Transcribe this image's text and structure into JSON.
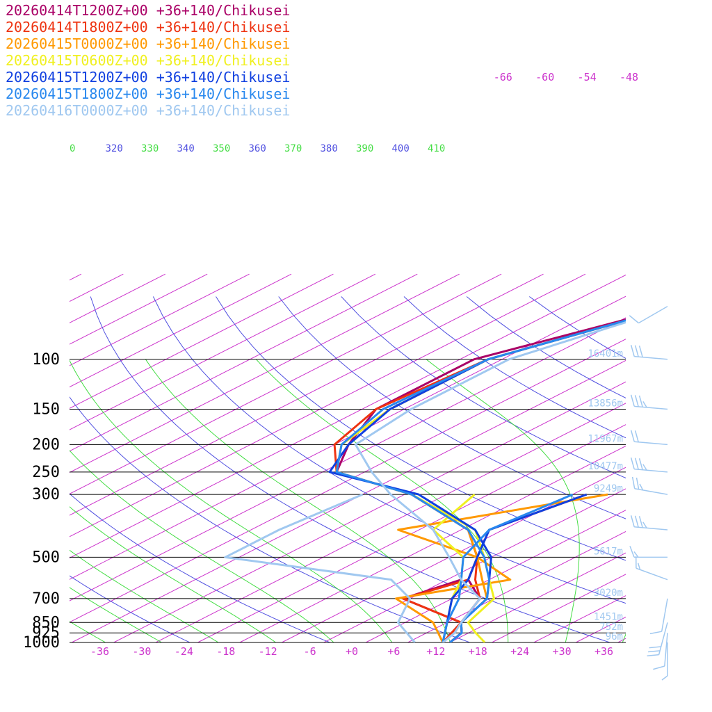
{
  "chart_data": {
    "type": "line",
    "title": "",
    "xlabel": "",
    "ylabel": "",
    "x_tick_labels": [
      "-36",
      "-30",
      "-24",
      "-18",
      "-12",
      "-6",
      "+0",
      "+6",
      "+12",
      "+18",
      "+24",
      "+30",
      "+36"
    ],
    "top_tick_labels": [
      "-66",
      "-60",
      "-54",
      "-48"
    ],
    "pressure_levels": [
      100,
      150,
      200,
      250,
      300,
      500,
      700,
      850,
      925,
      1000
    ],
    "pressure_labels": [
      "100",
      "150",
      "200",
      "250",
      "300",
      "500",
      "700",
      "850",
      "925",
      "1000"
    ],
    "theta_labels": [
      "0",
      "320",
      "330",
      "340",
      "350",
      "360",
      "370",
      "380",
      "390",
      "400",
      "410"
    ],
    "height_labels": [
      {
        "p": 100,
        "label": "16401m"
      },
      {
        "p": 150,
        "label": "13856m"
      },
      {
        "p": 200,
        "label": "11967m"
      },
      {
        "p": 250,
        "label": "10477m"
      },
      {
        "p": 300,
        "label": "9249m"
      },
      {
        "p": 500,
        "label": "5617m"
      },
      {
        "p": 700,
        "label": "3020m"
      },
      {
        "p": 850,
        "label": "1451m"
      },
      {
        "p": 925,
        "label": "752m"
      },
      {
        "p": 1000,
        "label": "96m"
      }
    ],
    "series": [
      {
        "name": "20260414T1200Z+00 +36+140/Chikusei",
        "color": "#aa0066",
        "temp": [
          [
            -48,
            65
          ],
          [
            -62,
            100
          ],
          [
            -62,
            150
          ],
          [
            -56,
            200
          ],
          [
            -50,
            250
          ],
          [
            -33,
            300
          ],
          [
            -15,
            400
          ],
          [
            -6,
            500
          ],
          [
            -1,
            600
          ],
          [
            6,
            700
          ],
          [
            10,
            850
          ],
          [
            13,
            925
          ],
          [
            14,
            1000
          ]
        ],
        "dew": [
          [
            -2,
            600
          ],
          [
            -5,
            700
          ],
          [
            10,
            850
          ],
          [
            13,
            1000
          ]
        ]
      },
      {
        "name": "20260414T1800Z+00 +36+140/Chikusei",
        "color": "#ee3311",
        "temp": [
          [
            -48,
            65
          ],
          [
            -60,
            100
          ],
          [
            -62,
            150
          ],
          [
            -58,
            200
          ],
          [
            -50,
            250
          ],
          [
            -33,
            300
          ],
          [
            -15,
            400
          ],
          [
            -6,
            500
          ],
          [
            0,
            600
          ],
          [
            6,
            700
          ],
          [
            10,
            850
          ],
          [
            13,
            925
          ],
          [
            14,
            1000
          ]
        ],
        "dew": [
          [
            -8,
            300
          ],
          [
            -12,
            400
          ],
          [
            -6,
            500
          ],
          [
            -1,
            600
          ],
          [
            -5,
            700
          ],
          [
            10,
            850
          ],
          [
            13,
            1000
          ]
        ]
      },
      {
        "name": "20260415T0000Z+00 +36+140/Chikusei",
        "color": "#ff9900",
        "temp": [
          [
            -48,
            65
          ],
          [
            -60,
            100
          ],
          [
            -60,
            150
          ],
          [
            -57,
            200
          ],
          [
            -50,
            250
          ],
          [
            -33,
            300
          ],
          [
            -15,
            400
          ],
          [
            -6,
            500
          ],
          [
            1,
            600
          ],
          [
            7,
            700
          ],
          [
            10,
            850
          ],
          [
            13,
            925
          ],
          [
            14,
            1000
          ]
        ],
        "dew": [
          [
            -5,
            300
          ],
          [
            -25,
            400
          ],
          [
            -6,
            500
          ],
          [
            5,
            600
          ],
          [
            -6,
            700
          ],
          [
            6,
            850
          ],
          [
            13,
            1000
          ]
        ]
      },
      {
        "name": "20260415T0600Z+00 +36+140/Chikusei",
        "color": "#f0f020",
        "temp": [
          [
            -48,
            65
          ],
          [
            -60,
            100
          ],
          [
            -60,
            150
          ],
          [
            -57,
            200
          ],
          [
            -50,
            250
          ],
          [
            -33,
            300
          ],
          [
            -14,
            400
          ],
          [
            -5,
            500
          ],
          [
            2,
            600
          ],
          [
            8,
            700
          ],
          [
            11,
            850
          ],
          [
            15,
            925
          ],
          [
            19,
            1000
          ]
        ],
        "dew": [
          [
            -24,
            300
          ],
          [
            -20,
            400
          ],
          [
            -8,
            500
          ],
          [
            -2,
            600
          ],
          [
            2,
            700
          ],
          [
            8,
            850
          ],
          [
            13,
            1000
          ]
        ]
      },
      {
        "name": "20260415T1200Z+00 +36+140/Chikusei",
        "color": "#1040e0",
        "temp": [
          [
            -48,
            65
          ],
          [
            -60,
            100
          ],
          [
            -60,
            150
          ],
          [
            -56,
            200
          ],
          [
            -51,
            250
          ],
          [
            -32,
            300
          ],
          [
            -14,
            400
          ],
          [
            -4,
            500
          ],
          [
            2,
            600
          ],
          [
            7,
            700
          ],
          [
            10,
            850
          ],
          [
            13,
            925
          ],
          [
            14,
            1000
          ]
        ],
        "dew": [
          [
            -8,
            300
          ],
          [
            -12,
            400
          ],
          [
            -6,
            500
          ],
          [
            -1,
            600
          ],
          [
            2,
            700
          ],
          [
            8,
            850
          ],
          [
            13,
            1000
          ]
        ]
      },
      {
        "name": "20260415T1800Z+00 +36+140/Chikusei",
        "color": "#2888ee",
        "temp": [
          [
            -48,
            65
          ],
          [
            -60,
            100
          ],
          [
            -61,
            150
          ],
          [
            -57,
            200
          ],
          [
            -50,
            250
          ],
          [
            -33,
            300
          ],
          [
            -15,
            400
          ],
          [
            -5,
            500
          ],
          [
            2,
            600
          ],
          [
            7,
            700
          ],
          [
            10,
            850
          ],
          [
            13,
            925
          ],
          [
            14,
            1000
          ]
        ],
        "dew": [
          [
            -10,
            300
          ],
          [
            -12,
            400
          ],
          [
            -8,
            500
          ],
          [
            -2,
            600
          ],
          [
            3,
            700
          ],
          [
            8,
            850
          ],
          [
            13,
            1000
          ]
        ]
      },
      {
        "name": "20260416T0000Z+00 +36+140/Chikusei",
        "color": "#a0c8f0",
        "temp": [
          [
            -48,
            65
          ],
          [
            -57,
            100
          ],
          [
            -57,
            150
          ],
          [
            -55,
            200
          ],
          [
            -45,
            250
          ],
          [
            -36,
            300
          ],
          [
            -20,
            400
          ],
          [
            -10,
            500
          ],
          [
            -2,
            600
          ],
          [
            6,
            700
          ],
          [
            10,
            850
          ],
          [
            12,
            925
          ],
          [
            13,
            1000
          ]
        ],
        "dew": [
          [
            -40,
            300
          ],
          [
            -42,
            400
          ],
          [
            -42,
            500
          ],
          [
            -12,
            600
          ],
          [
            -4,
            700
          ],
          [
            1,
            850
          ],
          [
            9,
            1000
          ]
        ]
      }
    ],
    "winds": [
      {
        "p": 65,
        "speed": 10,
        "dir": 240
      },
      {
        "p": 100,
        "speed": 30,
        "dir": 275
      },
      {
        "p": 150,
        "speed": 35,
        "dir": 275
      },
      {
        "p": 200,
        "speed": 20,
        "dir": 275
      },
      {
        "p": 250,
        "speed": 35,
        "dir": 275
      },
      {
        "p": 300,
        "speed": 25,
        "dir": 280
      },
      {
        "p": 400,
        "speed": 35,
        "dir": 275
      },
      {
        "p": 500,
        "speed": 15,
        "dir": 270
      },
      {
        "p": 600,
        "speed": 15,
        "dir": 290
      },
      {
        "p": 700,
        "speed": 10,
        "dir": 190
      },
      {
        "p": 850,
        "speed": 30,
        "dir": 195
      },
      {
        "p": 925,
        "speed": 10,
        "dir": 185
      },
      {
        "p": 1000,
        "speed": 5,
        "dir": 180
      }
    ],
    "colors": {
      "isotherm": "#cc33cc",
      "dry_adiabat": "#5050e0",
      "moist_adiabat": "#44dd44",
      "isobar": "#000000",
      "height": "#a0c8f0",
      "wind": "#a0c8f0"
    }
  }
}
